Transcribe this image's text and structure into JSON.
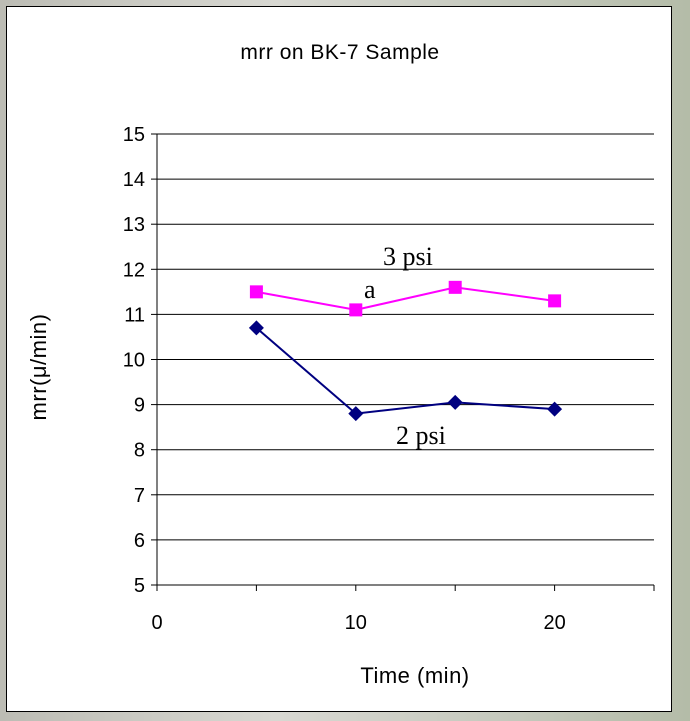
{
  "chart_data": {
    "type": "line",
    "title": "mrr on BK-7 Sample",
    "xlabel": "Time (min)",
    "ylabel": "mrr(μ/min)",
    "xlim": [
      0,
      25
    ],
    "ylim": [
      5,
      15
    ],
    "xticks": [
      "0",
      "10",
      "20"
    ],
    "yticks": [
      "5",
      "6",
      "7",
      "8",
      "9",
      "10",
      "11",
      "12",
      "13",
      "14",
      "15"
    ],
    "grid": true,
    "legend": "none",
    "series": [
      {
        "name": "3 psi",
        "color": "#ff00ff",
        "marker": "square",
        "x": [
          5,
          10,
          15,
          20
        ],
        "y": [
          11.5,
          11.1,
          11.6,
          11.3
        ]
      },
      {
        "name": "2 psi",
        "color": "#000080",
        "marker": "diamond",
        "x": [
          5,
          10,
          15,
          20
        ],
        "y": [
          10.7,
          8.8,
          9.05,
          8.9
        ]
      }
    ],
    "annotations": [
      {
        "text": "3 psi"
      },
      {
        "text": "a"
      },
      {
        "text": "2 psi"
      }
    ]
  }
}
